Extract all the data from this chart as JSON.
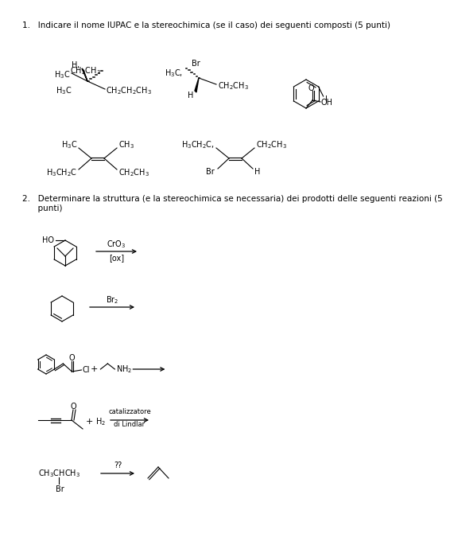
{
  "bg_color": "#ffffff",
  "text_color": "#000000",
  "title1": "1.   Indicare il nome IUPAC e la stereochimica (se il caso) dei seguenti composti (5 punti)",
  "title2": "2.   Determinare la struttura (e la stereochimica se necessaria) dei prodotti delle seguenti reazioni (5",
  "title2b": "      punti)",
  "font_size_title": 7.5,
  "font_size_chem": 7.0
}
